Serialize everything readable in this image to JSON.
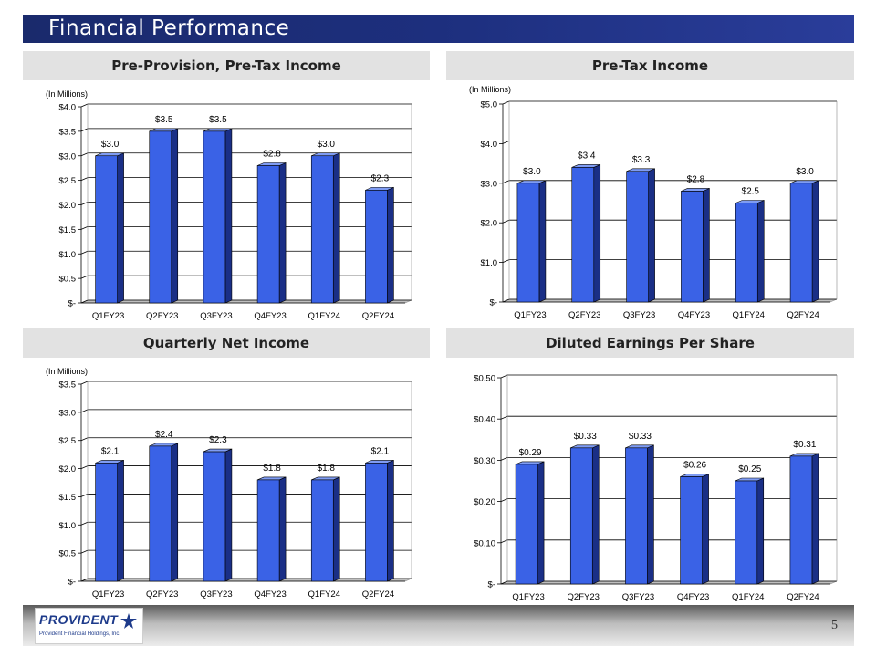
{
  "slide": {
    "title": "Financial Performance",
    "page_number": "5"
  },
  "logo": {
    "name": "PROVIDENT",
    "subtitle": "Provident Financial Holdings, Inc."
  },
  "colors": {
    "title_bar": "#1d2f7e",
    "bar_front": "#3a62e6",
    "bar_side": "#1a2f86",
    "bar_top": "#7f9cf3",
    "panel_header": "#e2e2e2"
  },
  "chart_data": [
    {
      "type": "bar",
      "title": "Pre-Provision, Pre-Tax Income",
      "unit_note": "(In Millions)",
      "categories": [
        "Q1FY23",
        "Q2FY23",
        "Q3FY23",
        "Q4FY23",
        "Q1FY24",
        "Q2FY24"
      ],
      "values": [
        3.0,
        3.5,
        3.5,
        2.8,
        3.0,
        2.3
      ],
      "value_labels": [
        "$3.0",
        "$3.5",
        "$3.5",
        "$2.8",
        "$3.0",
        "$2.3"
      ],
      "yticks": [
        0,
        0.5,
        1.0,
        1.5,
        2.0,
        2.5,
        3.0,
        3.5,
        4.0
      ],
      "ytick_labels": [
        "$-",
        "$0.5",
        "$1.0",
        "$1.5",
        "$2.0",
        "$2.5",
        "$3.0",
        "$3.5",
        "$4.0"
      ],
      "ylim": [
        0,
        4.0
      ],
      "grid": true
    },
    {
      "type": "bar",
      "title": "Pre-Tax Income",
      "unit_note": "(In Millions)",
      "categories": [
        "Q1FY23",
        "Q2FY23",
        "Q3FY23",
        "Q4FY23",
        "Q1FY24",
        "Q2FY24"
      ],
      "values": [
        3.0,
        3.4,
        3.3,
        2.8,
        2.5,
        3.0
      ],
      "value_labels": [
        "$3.0",
        "$3.4",
        "$3.3",
        "$2.8",
        "$2.5",
        "$3.0"
      ],
      "yticks": [
        0,
        1.0,
        2.0,
        3.0,
        4.0,
        5.0
      ],
      "ytick_labels": [
        "$-",
        "$1.0",
        "$2.0",
        "$3.0",
        "$4.0",
        "$5.0"
      ],
      "ylim": [
        0,
        5.0
      ],
      "grid": true
    },
    {
      "type": "bar",
      "title": "Quarterly Net Income",
      "unit_note": "(In Millions)",
      "categories": [
        "Q1FY23",
        "Q2FY23",
        "Q3FY23",
        "Q4FY23",
        "Q1FY24",
        "Q2FY24"
      ],
      "values": [
        2.1,
        2.4,
        2.3,
        1.8,
        1.8,
        2.1
      ],
      "value_labels": [
        "$2.1",
        "$2.4",
        "$2.3",
        "$1.8",
        "$1.8",
        "$2.1"
      ],
      "yticks": [
        0,
        0.5,
        1.0,
        1.5,
        2.0,
        2.5,
        3.0,
        3.5
      ],
      "ytick_labels": [
        "$-",
        "$0.5",
        "$1.0",
        "$1.5",
        "$2.0",
        "$2.5",
        "$3.0",
        "$3.5"
      ],
      "ylim": [
        0,
        3.5
      ],
      "grid": true
    },
    {
      "type": "bar",
      "title": "Diluted Earnings Per Share",
      "unit_note": "",
      "categories": [
        "Q1FY23",
        "Q2FY23",
        "Q3FY23",
        "Q4FY23",
        "Q1FY24",
        "Q2FY24"
      ],
      "values": [
        0.29,
        0.33,
        0.33,
        0.26,
        0.25,
        0.31
      ],
      "value_labels": [
        "$0.29",
        "$0.33",
        "$0.33",
        "$0.26",
        "$0.25",
        "$0.31"
      ],
      "yticks": [
        0,
        0.1,
        0.2,
        0.3,
        0.4,
        0.5
      ],
      "ytick_labels": [
        "$-",
        "$0.10",
        "$0.20",
        "$0.30",
        "$0.40",
        "$0.50"
      ],
      "ylim": [
        0,
        0.5
      ],
      "grid": true
    }
  ]
}
